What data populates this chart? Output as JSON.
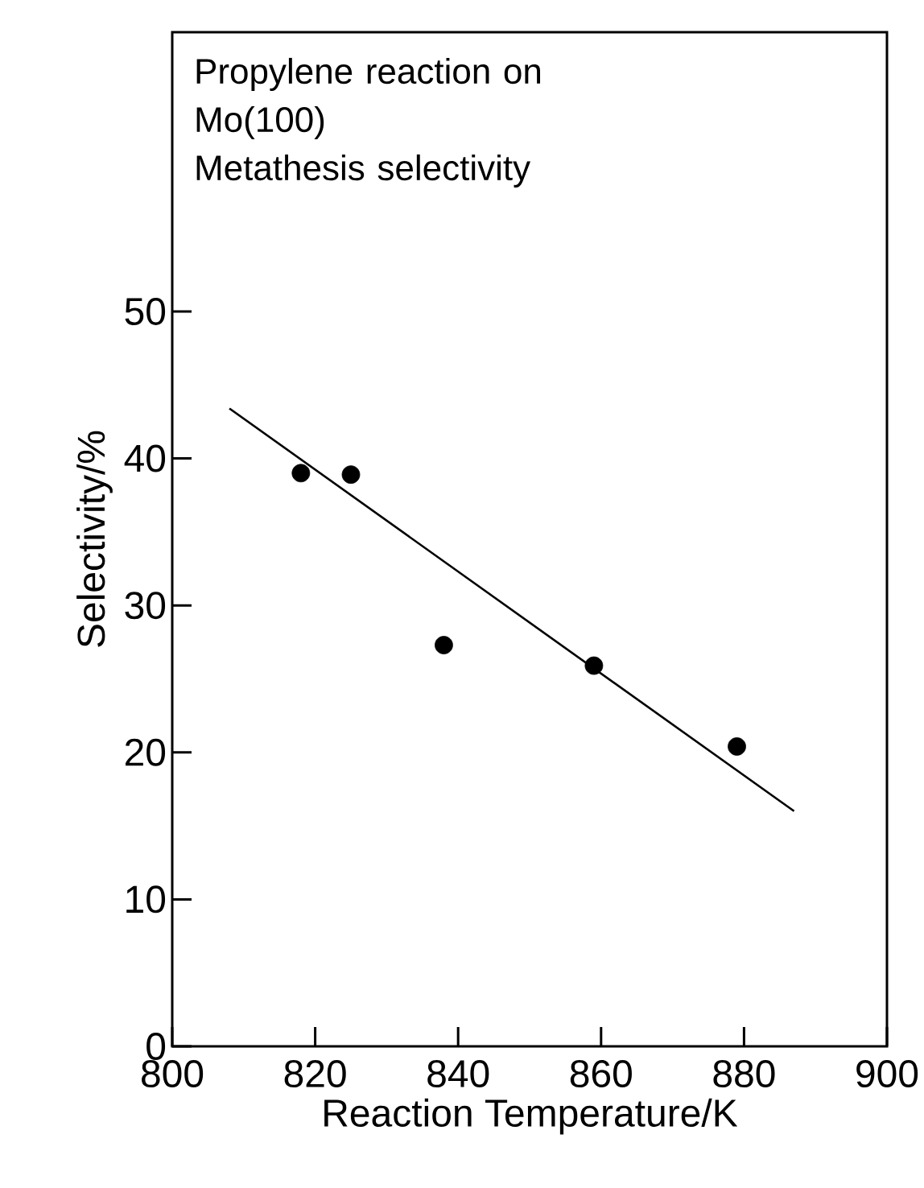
{
  "chart_data": {
    "type": "scatter",
    "title": "Propylene reaction on Mo(100)",
    "subtitle": "Metathesis selectivity",
    "xlabel": "Reaction Temperature/K",
    "ylabel": "Selectivity/%",
    "xlim": [
      800,
      900
    ],
    "ylim": [
      0,
      69
    ],
    "xticks": [
      800,
      820,
      840,
      860,
      880,
      900
    ],
    "yticks": [
      0,
      10,
      20,
      30,
      40,
      50
    ],
    "series": [
      {
        "marker": "circle",
        "color": "#000000",
        "x": [
          818,
          825,
          838,
          859,
          879
        ],
        "values": [
          39.0,
          38.9,
          27.3,
          25.9,
          20.4
        ]
      },
      {
        "type": "line",
        "color": "#000000",
        "marker": "none",
        "x": [
          808,
          887
        ],
        "values": [
          43.4,
          16.0
        ]
      }
    ]
  }
}
